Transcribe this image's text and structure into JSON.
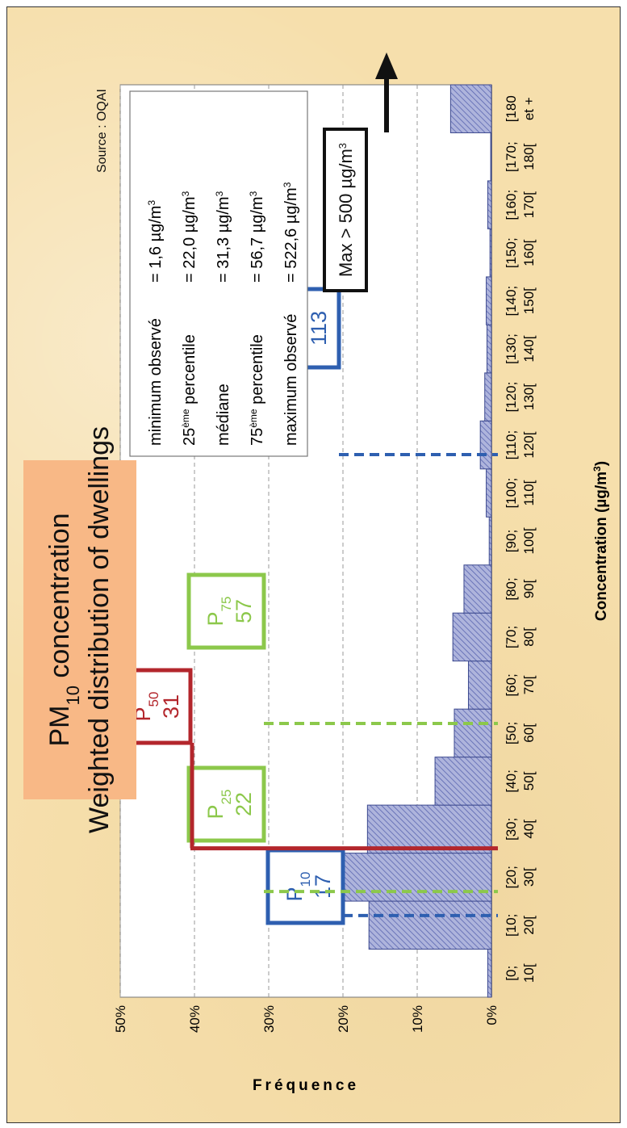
{
  "title": {
    "line1_main": "PM",
    "line1_sub": "10",
    "line1_rest": " concentration",
    "line2": "Weighted distribution of dwellings"
  },
  "source": "Source : OQAI",
  "stats_box": {
    "rows": [
      {
        "label": "minimum observé",
        "label_sup": "",
        "label_suffix": "",
        "value": "= 1,6 µg/m",
        "unit_sup": "3"
      },
      {
        "label": "25",
        "label_sup": "ème",
        "label_suffix": " percentile",
        "value": "= 22,0 µg/m",
        "unit_sup": "3"
      },
      {
        "label": "médiane",
        "label_sup": "",
        "label_suffix": "",
        "value": "= 31,3 µg/m",
        "unit_sup": "3"
      },
      {
        "label": "75",
        "label_sup": "ème",
        "label_suffix": " percentile",
        "value": "= 56,7 µg/m",
        "unit_sup": "3"
      },
      {
        "label": "maximum observé",
        "label_sup": "",
        "label_suffix": "",
        "value": "= 522,6 µg/m",
        "unit_sup": "3"
      }
    ]
  },
  "max_label": "Max > 500 µg/m",
  "max_label_sup": "3",
  "colors": {
    "bar_fill": "#aeb4dc",
    "bar_stroke": "#3d4a8f",
    "p10_p90": "#2e5fb0",
    "p25_p75": "#8cc84b",
    "p50": "#b3262c",
    "title_box": "#f8b886",
    "background": "#f6dfac"
  },
  "percentile_markers": [
    {
      "label": "P",
      "sub": "10",
      "value": "17",
      "color_key": "p10_p90",
      "style": "dashed"
    },
    {
      "label": "P",
      "sub": "25",
      "value": "22",
      "color_key": "p25_p75",
      "style": "dashed"
    },
    {
      "label": "P",
      "sub": "50",
      "value": "31",
      "color_key": "p50",
      "style": "solid"
    },
    {
      "label": "P",
      "sub": "75",
      "value": "57",
      "color_key": "p25_p75",
      "style": "dashed"
    },
    {
      "label": "P",
      "sub": "90",
      "value": "113",
      "color_key": "p10_p90",
      "style": "dashed"
    }
  ],
  "chart_data": {
    "type": "bar",
    "title": "PM10 concentration Weighted distribution of dwellings",
    "xlabel": "Concentration (µg/m3)",
    "ylabel": "Fréquence",
    "ylim": [
      0,
      0.5
    ],
    "yticks": [
      "0%",
      "10%",
      "20%",
      "30%",
      "40%",
      "50%"
    ],
    "grid": true,
    "categories": [
      [
        "[0;",
        "10["
      ],
      [
        "[10;",
        "20["
      ],
      [
        "[20;",
        "30["
      ],
      [
        "[30;",
        "40["
      ],
      [
        "[40;",
        "50["
      ],
      [
        "[50;",
        "60["
      ],
      [
        "[60;",
        "70["
      ],
      [
        "[70;",
        "80["
      ],
      [
        "[80;",
        "90["
      ],
      [
        "[90;",
        "100["
      ],
      [
        "[100;",
        "110["
      ],
      [
        "[110;",
        "120["
      ],
      [
        "[120;",
        "130["
      ],
      [
        "[130;",
        "140["
      ],
      [
        "[140;",
        "150["
      ],
      [
        "[150;",
        "160["
      ],
      [
        "[160;",
        "170["
      ],
      [
        "[170;",
        "180["
      ],
      [
        "[180",
        "et +"
      ]
    ],
    "values": [
      0.005,
      0.165,
      0.289,
      0.167,
      0.076,
      0.05,
      0.031,
      0.052,
      0.037,
      0.003,
      0.007,
      0.015,
      0.009,
      0.006,
      0.007,
      0.002,
      0.005,
      0.001,
      0.055
    ]
  }
}
